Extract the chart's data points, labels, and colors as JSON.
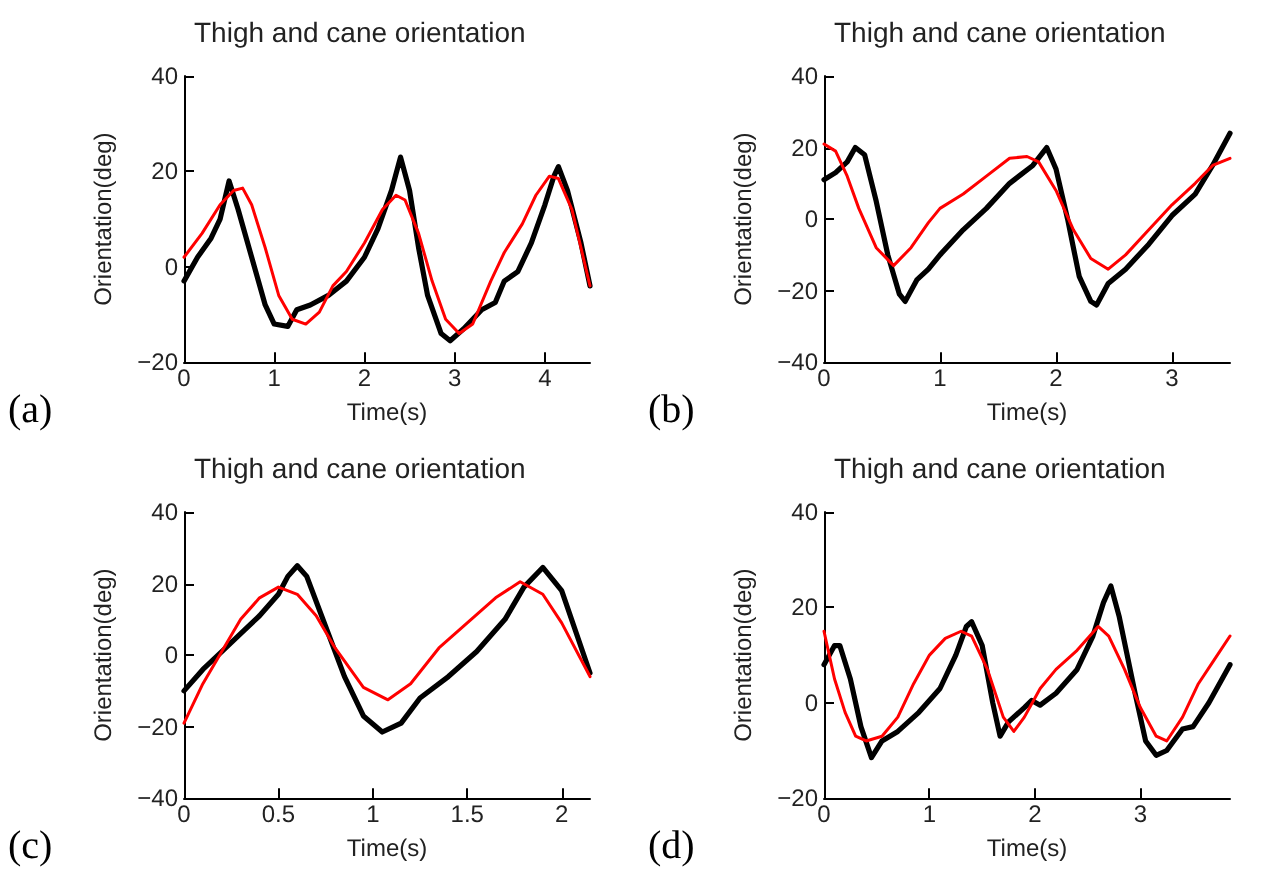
{
  "chart_data": [
    {
      "type": "line",
      "title": "Thigh and cane orientation",
      "xlabel": "Time(s)",
      "ylabel": "Orientation(deg)",
      "xlim": [
        0,
        4.5
      ],
      "xticks": [
        0,
        1,
        2,
        3,
        4
      ],
      "ylim": [
        -20,
        40
      ],
      "yticks": [
        -20,
        0,
        20,
        40
      ],
      "annotations": [
        "(a)"
      ],
      "series": [
        {
          "color": "#000000",
          "x": [
            0,
            0.15,
            0.3,
            0.4,
            0.5,
            0.6,
            0.75,
            0.9,
            1.0,
            1.15,
            1.25,
            1.4,
            1.6,
            1.8,
            2.0,
            2.15,
            2.3,
            2.4,
            2.5,
            2.6,
            2.7,
            2.85,
            2.95,
            3.1,
            3.3,
            3.45,
            3.55,
            3.7,
            3.85,
            4.0,
            4.1,
            4.15,
            4.25,
            4.4,
            4.5
          ],
          "values": [
            -3,
            2,
            6,
            10,
            18,
            12,
            2,
            -8,
            -12,
            -12.5,
            -9,
            -8,
            -6,
            -3,
            2,
            8,
            16,
            23,
            16,
            4,
            -6,
            -14,
            -15.5,
            -13,
            -9,
            -7.5,
            -3,
            -1,
            5,
            13,
            19,
            21,
            16,
            5,
            -4
          ]
        },
        {
          "color": "#ff0000",
          "x": [
            0,
            0.2,
            0.4,
            0.55,
            0.65,
            0.75,
            0.9,
            1.05,
            1.2,
            1.35,
            1.5,
            1.65,
            1.8,
            2.0,
            2.2,
            2.35,
            2.45,
            2.6,
            2.75,
            2.9,
            3.05,
            3.2,
            3.4,
            3.55,
            3.75,
            3.9,
            4.05,
            4.15,
            4.3,
            4.5
          ],
          "values": [
            2,
            7,
            13,
            16,
            16.5,
            13,
            4,
            -6,
            -11,
            -12,
            -9.5,
            -4,
            -1,
            5,
            12,
            15,
            14,
            7,
            -3,
            -11,
            -14,
            -12,
            -3,
            3,
            9,
            15,
            19,
            18.5,
            12,
            -4
          ]
        }
      ]
    },
    {
      "type": "line",
      "title": "Thigh and cane orientation",
      "xlabel": "Time(s)",
      "ylabel": "Orientation(deg)",
      "xlim": [
        0,
        3.5
      ],
      "xticks": [
        0,
        1,
        2,
        3
      ],
      "ylim": [
        -40,
        40
      ],
      "yticks": [
        -40,
        -20,
        0,
        20,
        40
      ],
      "annotations": [
        "(b)"
      ],
      "series": [
        {
          "color": "#000000",
          "x": [
            0,
            0.1,
            0.2,
            0.27,
            0.35,
            0.45,
            0.55,
            0.65,
            0.7,
            0.8,
            0.9,
            1.0,
            1.2,
            1.4,
            1.6,
            1.8,
            1.92,
            2.0,
            2.1,
            2.2,
            2.3,
            2.35,
            2.45,
            2.6,
            2.8,
            3.0,
            3.2,
            3.35,
            3.5
          ],
          "values": [
            11,
            13,
            16,
            20,
            18,
            5,
            -10,
            -21,
            -23,
            -17,
            -14,
            -10,
            -3,
            3,
            10,
            15,
            20,
            14,
            0,
            -16,
            -23,
            -24,
            -18,
            -14,
            -7,
            1,
            7,
            15,
            24
          ]
        },
        {
          "color": "#ff0000",
          "x": [
            0,
            0.1,
            0.2,
            0.3,
            0.45,
            0.6,
            0.75,
            0.9,
            1.0,
            1.2,
            1.4,
            1.6,
            1.75,
            1.85,
            2.0,
            2.15,
            2.3,
            2.45,
            2.6,
            2.8,
            3.0,
            3.2,
            3.35,
            3.5
          ],
          "values": [
            21,
            19,
            12,
            3,
            -8,
            -13,
            -8,
            -1,
            3,
            7,
            12,
            17,
            17.5,
            16,
            8,
            -3,
            -11,
            -14,
            -10,
            -3,
            4,
            10,
            15,
            17
          ]
        }
      ]
    },
    {
      "type": "line",
      "title": "Thigh and cane orientation",
      "xlabel": "Time(s)",
      "ylabel": "Orientation(deg)",
      "xlim": [
        0,
        2.15
      ],
      "xticks": [
        0,
        0.5,
        1,
        1.5,
        2
      ],
      "ylim": [
        -40,
        40
      ],
      "yticks": [
        -40,
        -20,
        0,
        20,
        40
      ],
      "annotations": [
        "(c)"
      ],
      "series": [
        {
          "color": "#000000",
          "x": [
            0,
            0.1,
            0.2,
            0.3,
            0.4,
            0.5,
            0.55,
            0.6,
            0.65,
            0.75,
            0.85,
            0.95,
            1.05,
            1.15,
            1.25,
            1.4,
            1.55,
            1.7,
            1.8,
            1.9,
            2.0,
            2.15
          ],
          "values": [
            -10,
            -4,
            1,
            6,
            11,
            17,
            22,
            25,
            22,
            8,
            -6,
            -17,
            -21.5,
            -19,
            -12,
            -6,
            1,
            10,
            19,
            24.5,
            18,
            -5
          ]
        },
        {
          "color": "#ff0000",
          "x": [
            0,
            0.1,
            0.2,
            0.3,
            0.4,
            0.5,
            0.6,
            0.7,
            0.8,
            0.95,
            1.08,
            1.2,
            1.35,
            1.5,
            1.65,
            1.78,
            1.9,
            2.0,
            2.15
          ],
          "values": [
            -19,
            -8,
            1,
            10,
            16,
            19,
            17,
            11,
            2,
            -9,
            -12.5,
            -8,
            2,
            9,
            16,
            20.5,
            17,
            9,
            -6
          ]
        }
      ]
    },
    {
      "type": "line",
      "title": "Thigh and cane orientation",
      "xlabel": "Time(s)",
      "ylabel": "Orientation(deg)",
      "xlim": [
        0,
        3.85
      ],
      "xticks": [
        0,
        1,
        2,
        3
      ],
      "ylim": [
        -20,
        40
      ],
      "yticks": [
        -20,
        0,
        20,
        40
      ],
      "annotations": [
        "(d)"
      ],
      "series": [
        {
          "color": "#000000",
          "x": [
            0,
            0.1,
            0.15,
            0.25,
            0.35,
            0.45,
            0.55,
            0.7,
            0.9,
            1.1,
            1.25,
            1.35,
            1.4,
            1.5,
            1.6,
            1.67,
            1.75,
            1.9,
            1.97,
            2.05,
            2.2,
            2.4,
            2.55,
            2.65,
            2.72,
            2.8,
            2.95,
            3.05,
            3.15,
            3.25,
            3.4,
            3.5,
            3.65,
            3.85
          ],
          "values": [
            8,
            12,
            12,
            5,
            -5,
            -11.5,
            -8,
            -6,
            -2,
            3,
            10,
            16,
            17,
            12,
            0,
            -7,
            -4,
            -1,
            0.5,
            -0.5,
            2,
            7,
            14,
            21,
            24.5,
            18,
            2,
            -8,
            -11,
            -10,
            -5.5,
            -5,
            0,
            8
          ]
        },
        {
          "color": "#ff0000",
          "x": [
            0,
            0.1,
            0.2,
            0.3,
            0.4,
            0.55,
            0.7,
            0.85,
            1.0,
            1.15,
            1.3,
            1.4,
            1.55,
            1.7,
            1.8,
            1.9,
            2.05,
            2.2,
            2.4,
            2.6,
            2.7,
            2.85,
            3.0,
            3.15,
            3.25,
            3.4,
            3.55,
            3.7,
            3.85
          ],
          "values": [
            15,
            5,
            -2,
            -7,
            -8,
            -7,
            -3,
            4,
            10,
            13.5,
            15,
            14,
            7,
            -3,
            -6,
            -3,
            3,
            7,
            11,
            16,
            14,
            7,
            -1,
            -7,
            -8,
            -3,
            4,
            9,
            14
          ]
        }
      ]
    }
  ]
}
